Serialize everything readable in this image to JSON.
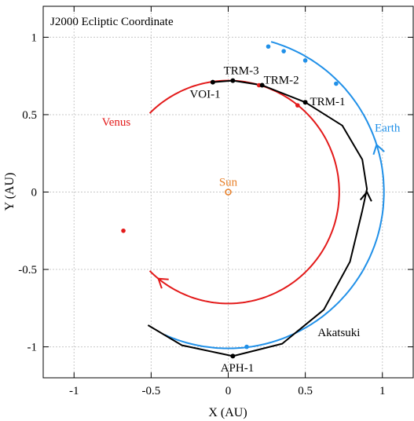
{
  "chart_data": {
    "type": "line",
    "title": "J2000 Ecliptic Coordinate",
    "xlabel": "X (AU)",
    "ylabel": "Y (AU)",
    "xlim": [
      -1.2,
      1.2
    ],
    "ylim": [
      -1.2,
      1.2
    ],
    "x_ticks": [
      -1,
      -0.5,
      0,
      0.5,
      1
    ],
    "y_ticks": [
      -1,
      -0.5,
      0,
      0.5,
      1
    ],
    "x_tick_labels": [
      "-1",
      "-0.5",
      "0",
      "0.5",
      "1"
    ],
    "y_tick_labels": [
      "-1",
      "-0.5",
      "0",
      "0.5",
      "1"
    ],
    "grid": true,
    "sun": {
      "label": "Sun",
      "x": 0,
      "y": 0,
      "color": "#e8802a"
    },
    "series": [
      {
        "name": "Venus",
        "color": "#e31a1a",
        "radius": 0.72,
        "start_deg": 135,
        "end_deg": 225,
        "arc_sweep_deg": 270,
        "markers": [
          {
            "x": -0.68,
            "y": -0.25
          },
          {
            "x": 0.2,
            "y": 0.69
          },
          {
            "x": 0.45,
            "y": 0.56
          }
        ],
        "label_pos": [
          -0.82,
          0.43
        ]
      },
      {
        "name": "Earth",
        "color": "#2090e8",
        "radius": 1.01,
        "start_deg": 246,
        "end_deg": 74,
        "arc_sweep_deg": 188,
        "markers": [
          {
            "x": 0.26,
            "y": 0.94
          },
          {
            "x": 0.36,
            "y": 0.91
          },
          {
            "x": 0.5,
            "y": 0.85
          },
          {
            "x": 0.7,
            "y": 0.7
          },
          {
            "x": 0.12,
            "y": -1.0
          }
        ],
        "label_pos": [
          0.95,
          0.39
        ]
      },
      {
        "name": "Akatsuki",
        "color": "#000000",
        "path": [
          [
            -0.52,
            -0.86
          ],
          [
            -0.3,
            -0.99
          ],
          [
            0.03,
            -1.06
          ],
          [
            0.35,
            -0.98
          ],
          [
            0.62,
            -0.76
          ],
          [
            0.79,
            -0.45
          ],
          [
            0.87,
            -0.12
          ],
          [
            0.9,
            0.02
          ],
          [
            0.87,
            0.21
          ],
          [
            0.74,
            0.43
          ],
          [
            0.5,
            0.58
          ],
          [
            0.22,
            0.69
          ],
          [
            0.03,
            0.72
          ],
          [
            -0.1,
            0.71
          ]
        ],
        "label_pos": [
          0.58,
          -0.93
        ]
      }
    ],
    "annotations": [
      {
        "label": "TRM-3",
        "x": 0.03,
        "y": 0.72,
        "label_pos": [
          -0.03,
          0.76
        ]
      },
      {
        "label": "TRM-2",
        "x": 0.22,
        "y": 0.69,
        "label_pos": [
          0.23,
          0.7
        ]
      },
      {
        "label": "TRM-1",
        "x": 0.5,
        "y": 0.58,
        "label_pos": [
          0.53,
          0.56
        ]
      },
      {
        "label": "VOI-1",
        "x": -0.1,
        "y": 0.71,
        "label_pos": [
          -0.25,
          0.61
        ]
      },
      {
        "label": "APH-1",
        "x": 0.03,
        "y": -1.06,
        "label_pos": [
          -0.05,
          -1.16
        ]
      }
    ]
  }
}
